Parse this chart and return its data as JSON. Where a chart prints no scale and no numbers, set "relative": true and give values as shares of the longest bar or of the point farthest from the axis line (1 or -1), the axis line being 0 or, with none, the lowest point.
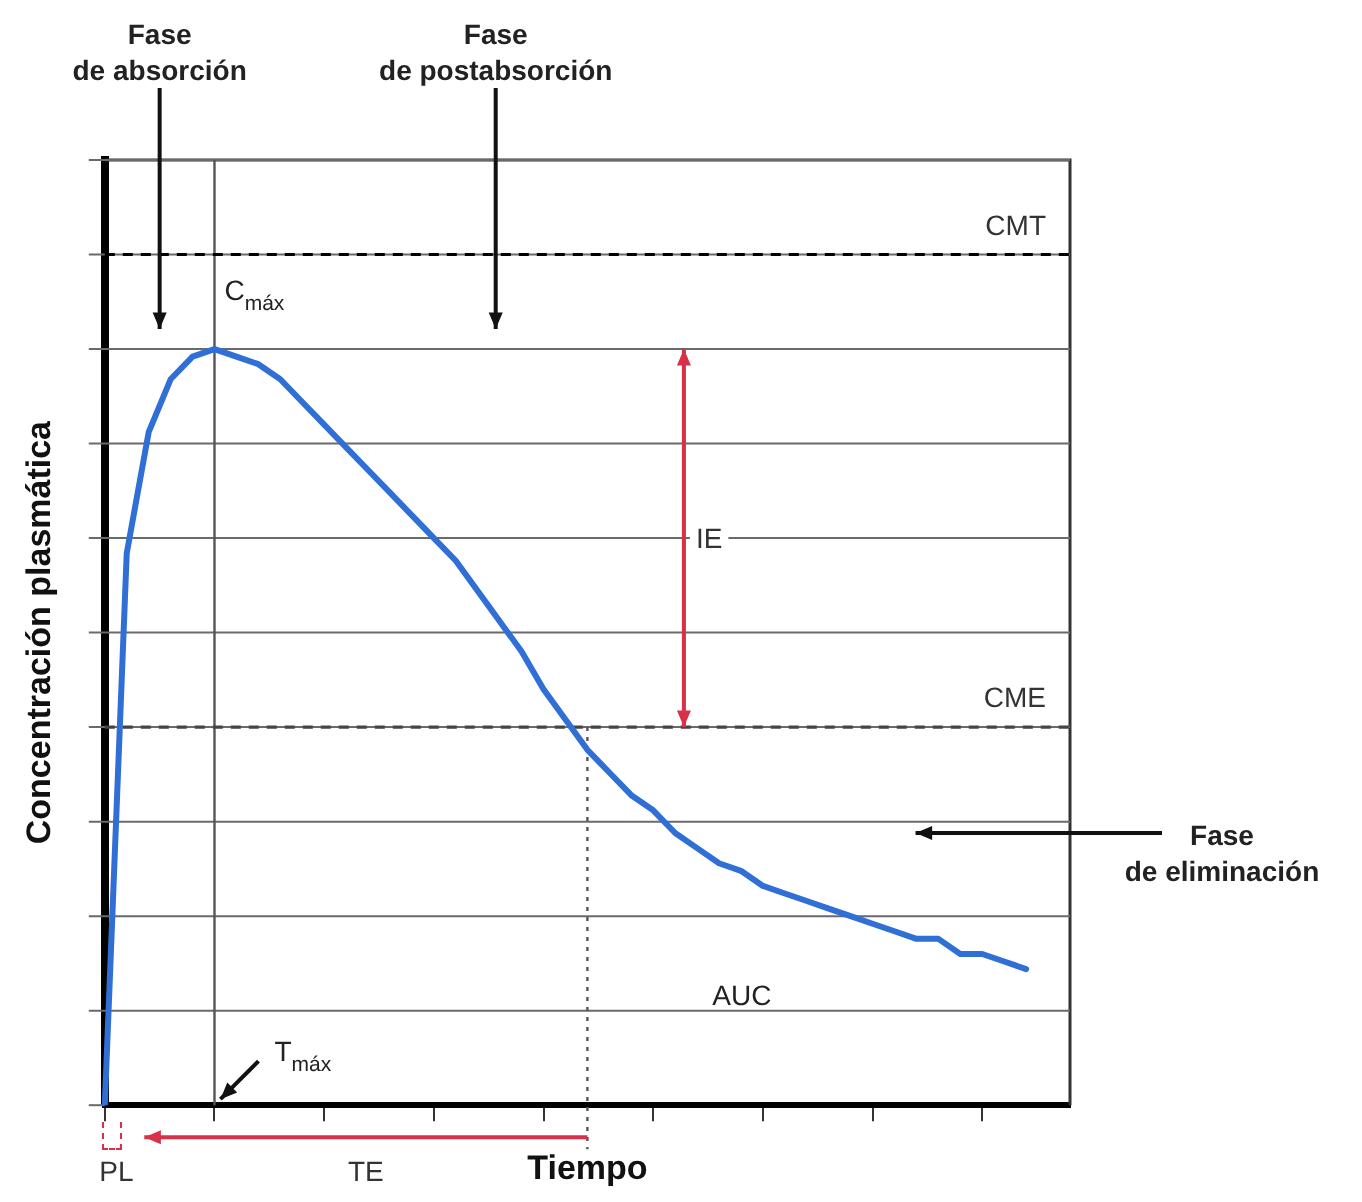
{
  "chart_data": {
    "type": "line",
    "relative": true,
    "xlabel": "Tiempo",
    "ylabel": "Concentración plasmática",
    "categories": [
      null,
      null,
      null,
      null,
      null,
      null,
      null,
      null,
      null,
      null,
      null,
      null,
      null,
      null,
      null,
      null,
      null,
      null,
      null,
      null,
      null,
      null,
      null,
      null,
      null,
      null,
      null,
      null,
      null,
      null,
      null,
      null,
      null,
      null,
      null,
      null,
      null,
      null,
      null,
      null,
      null,
      null,
      null,
      null,
      null
    ],
    "series": [
      {
        "color": "#2f6fd6",
        "values": [
          0,
          0.73,
          0.89,
          0.96,
          0.99,
          1.0,
          0.99,
          0.98,
          0.96,
          0.93,
          0.9,
          0.87,
          0.84,
          0.81,
          0.78,
          0.75,
          0.72,
          0.68,
          0.64,
          0.6,
          0.55,
          0.51,
          0.47,
          0.44,
          0.41,
          0.39,
          0.36,
          0.34,
          0.32,
          0.31,
          0.29,
          0.28,
          0.27,
          0.26,
          0.25,
          0.24,
          0.23,
          0.22,
          0.22,
          0.2,
          0.2,
          0.19,
          0.18,
          null,
          null
        ]
      }
    ],
    "grid": "y",
    "legend": false,
    "marker": "none",
    "line_style": "solid",
    "ref_lines": [
      {
        "axis": "y",
        "value": 1.125,
        "label": "CMT",
        "line_style": "dashed",
        "color": "#000000"
      },
      {
        "axis": "y",
        "value": 0.5,
        "label": "CME",
        "line_style": "dashed",
        "color": "#444444"
      }
    ],
    "annotations": [
      "Fase\nde absorción",
      "Fase\nde postabsorción",
      "Fase\nde eliminación",
      "C$_{máx}$",
      "T$_{máx}$",
      "AUC",
      "PL",
      "TE",
      "IE"
    ]
  }
}
